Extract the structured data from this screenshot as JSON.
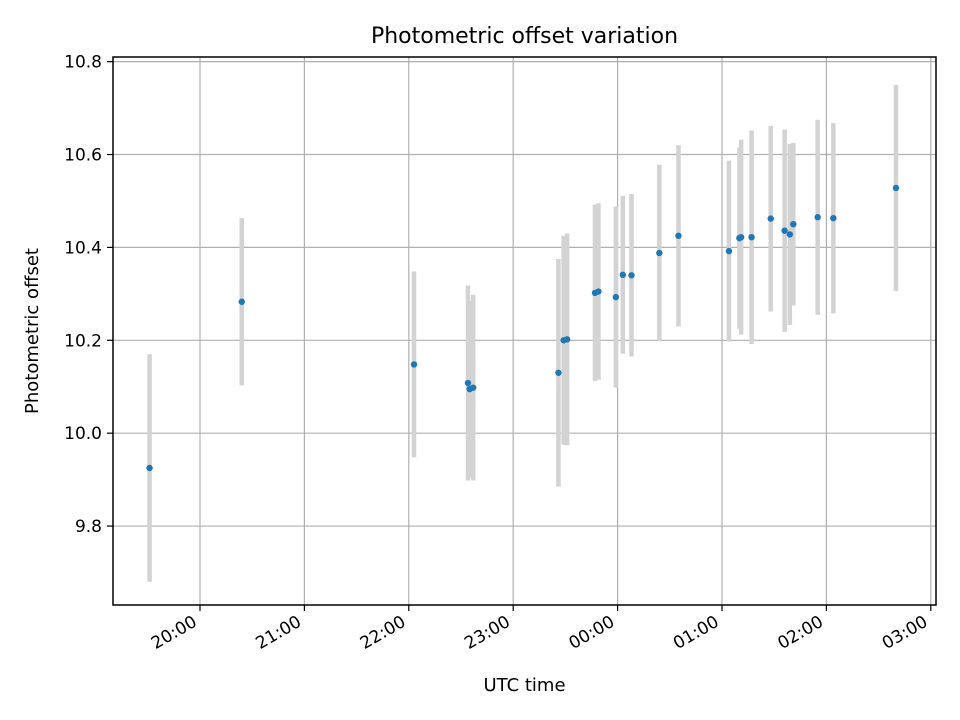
{
  "chart_data": {
    "type": "scatter",
    "title": "Photometric offset variation",
    "xlabel": "UTC time",
    "ylabel": "Photometric offset",
    "x_tick_labels": [
      "20:00",
      "21:00",
      "22:00",
      "23:00",
      "00:00",
      "01:00",
      "02:00",
      "03:00"
    ],
    "y_ticks": [
      "9.8",
      "10.0",
      "10.2",
      "10.4",
      "10.6",
      "10.8"
    ],
    "xlim": [
      "19:10",
      "03:03"
    ],
    "ylim": [
      9.63,
      10.81
    ],
    "grid": true,
    "colors": {
      "point": "#1f77b4",
      "errorbar": "#d3d3d3",
      "grid": "#b0b0b0"
    },
    "points": [
      {
        "t": "19:31",
        "y": 9.925,
        "err": 0.245
      },
      {
        "t": "20:24",
        "y": 10.283,
        "err": 0.18
      },
      {
        "t": "22:03",
        "y": 10.148,
        "err": 0.2
      },
      {
        "t": "22:34",
        "y": 10.108,
        "err": 0.21
      },
      {
        "t": "22:35",
        "y": 10.095,
        "err": 0.19
      },
      {
        "t": "22:37",
        "y": 10.098,
        "err": 0.2
      },
      {
        "t": "23:26",
        "y": 10.13,
        "err": 0.245
      },
      {
        "t": "23:29",
        "y": 10.2,
        "err": 0.225
      },
      {
        "t": "23:31",
        "y": 10.202,
        "err": 0.228
      },
      {
        "t": "23:47",
        "y": 10.302,
        "err": 0.19
      },
      {
        "t": "23:49",
        "y": 10.305,
        "err": 0.19
      },
      {
        "t": "23:59",
        "y": 10.293,
        "err": 0.195
      },
      {
        "t": "00:03",
        "y": 10.341,
        "err": 0.17
      },
      {
        "t": "00:08",
        "y": 10.34,
        "err": 0.175
      },
      {
        "t": "00:24",
        "y": 10.388,
        "err": 0.19
      },
      {
        "t": "00:35",
        "y": 10.425,
        "err": 0.195
      },
      {
        "t": "01:04",
        "y": 10.392,
        "err": 0.195
      },
      {
        "t": "01:10",
        "y": 10.42,
        "err": 0.195
      },
      {
        "t": "01:11",
        "y": 10.422,
        "err": 0.21
      },
      {
        "t": "01:17",
        "y": 10.422,
        "err": 0.23
      },
      {
        "t": "01:28",
        "y": 10.462,
        "err": 0.2
      },
      {
        "t": "01:36",
        "y": 10.436,
        "err": 0.218
      },
      {
        "t": "01:39",
        "y": 10.428,
        "err": 0.195
      },
      {
        "t": "01:41",
        "y": 10.45,
        "err": 0.175
      },
      {
        "t": "01:55",
        "y": 10.465,
        "err": 0.21
      },
      {
        "t": "02:04",
        "y": 10.463,
        "err": 0.205
      },
      {
        "t": "02:40",
        "y": 10.528,
        "err": 0.222
      }
    ]
  }
}
